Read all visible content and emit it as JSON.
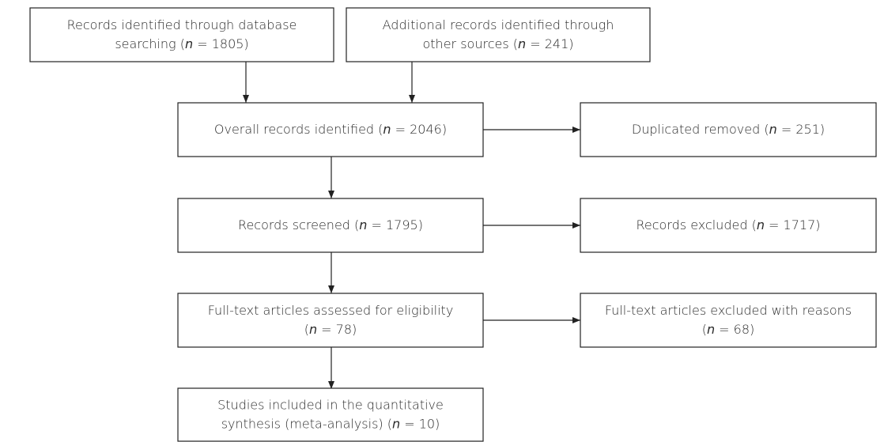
{
  "nodes": [
    {
      "lines": [
        "Records identified through database",
        "searching (n = 1805)"
      ]
    },
    {
      "lines": [
        "Additional records identified through",
        "other sources (n = 241)"
      ]
    },
    {
      "lines": [
        "Overall records identified (n = 2046)"
      ]
    },
    {
      "lines": [
        "Duplicated removed (n = 251)"
      ]
    },
    {
      "lines": [
        "Records screened (n = 1795)"
      ]
    },
    {
      "lines": [
        "Records excluded (n = 1717)"
      ]
    },
    {
      "lines": [
        "Full-text articles assessed for eligibility",
        "(n = 78)"
      ]
    },
    {
      "lines": [
        "Full-text articles excluded with reasons",
        "(n = 68)"
      ]
    },
    {
      "lines": [
        "Studies included in the quantitative",
        "synthesis (meta-analysis) (n = 10)"
      ]
    }
  ]
}
